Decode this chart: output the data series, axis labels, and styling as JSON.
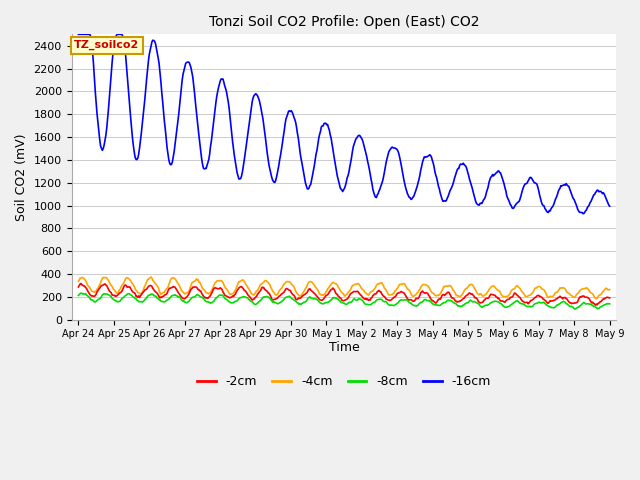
{
  "title": "Tonzi Soil CO2 Profile: Open (East) CO2",
  "ylabel": "Soil CO2 (mV)",
  "xlabel": "Time",
  "ylim": [
    0,
    2500
  ],
  "yticks": [
    0,
    200,
    400,
    600,
    800,
    1000,
    1200,
    1400,
    1600,
    1800,
    2000,
    2200,
    2400
  ],
  "fig_bg": "#f0f0f0",
  "plot_bg": "#ffffff",
  "line_colors": {
    "-2cm": "#ff0000",
    "-4cm": "#ffa500",
    "-8cm": "#00dd00",
    "-16cm": "#0000ff"
  },
  "legend_labels": [
    "-2cm",
    "-4cm",
    "-8cm",
    "-16cm"
  ],
  "annotation_text": "TZ_soilco2",
  "annotation_color": "#cc0000",
  "annotation_bg": "#ffffcc",
  "annotation_border": "#cc9900",
  "x_tick_labels": [
    "Apr 24",
    "Apr 25",
    "Apr 26",
    "Apr 27",
    "Apr 28",
    "Apr 29",
    "Apr 30",
    "May 1",
    "May 2",
    "May 3",
    "May 4",
    "May 5",
    "May 6",
    "May 7",
    "May 8",
    "May 9"
  ],
  "n_ticks": 16
}
